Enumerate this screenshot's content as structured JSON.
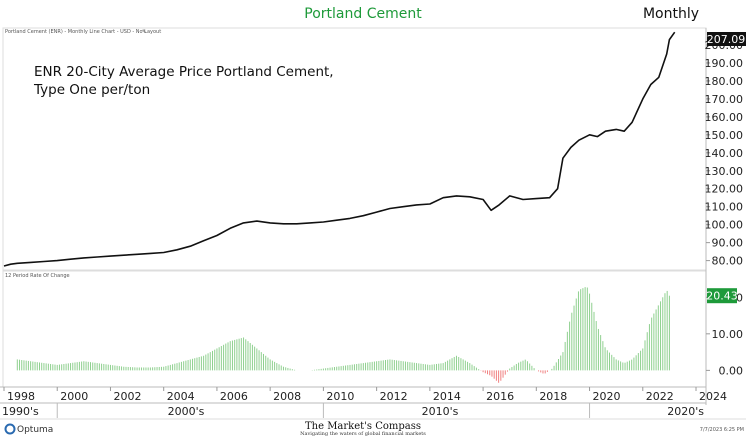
{
  "header": {
    "title": "Portland Cement",
    "frequency": "Monthly",
    "chart_info": "Portland Cement (ENR) - Monthly Line Chart - USD - No Layout"
  },
  "annotation": {
    "line1": "ENR 20-City Average Price Portland Cement,",
    "line2": "Type One per/ton"
  },
  "lower_panel": {
    "label": "12 Period Rate Of Change"
  },
  "footer": {
    "logo": "Optuma",
    "brand": "The Market's Compass",
    "tagline": "Navigating the waters of global financial markets",
    "timestamp": "7/7/2023 6:25 PM"
  },
  "colors": {
    "title": "#1e9a3a",
    "price_line": "#111111",
    "positive_bar": "#8fd08f",
    "negative_bar": "#f08080",
    "last_price_bg": "#111111",
    "last_roc_bg": "#1e9a3a"
  },
  "chart_data": [
    {
      "type": "line",
      "title": "Portland Cement",
      "x_ticks": [
        "1998",
        "2000",
        "2002",
        "2004",
        "2006",
        "2008",
        "2010",
        "2012",
        "2014",
        "2016",
        "2018",
        "2020",
        "2022",
        "2024"
      ],
      "decade_labels": [
        "1990's",
        "2000's",
        "2010's",
        "2020's"
      ],
      "y_ticks": [
        "80.00",
        "90.00",
        "100.00",
        "110.00",
        "120.00",
        "130.00",
        "140.00",
        "150.00",
        "160.00",
        "170.00",
        "180.00",
        "190.00",
        "200.00"
      ],
      "ylim": [
        77,
        205
      ],
      "xlim": [
        1998.0,
        2024.3
      ],
      "last_value": "207.09",
      "series": [
        {
          "x": [
            1998.0,
            1998.25,
            1998.5,
            1999.0,
            1999.5,
            2000.0,
            2000.5,
            2001.0,
            2001.5,
            2002.0,
            2002.5,
            2003.0,
            2003.5,
            2004.0,
            2004.5,
            2005.0,
            2005.5,
            2006.0,
            2006.5,
            2007.0,
            2007.5,
            2008.0,
            2008.5,
            2009.0,
            2009.5,
            2010.0,
            2010.5,
            2011.0,
            2011.5,
            2012.0,
            2012.5,
            2013.0,
            2013.5,
            2014.0,
            2014.5,
            2015.0,
            2015.5,
            2016.0,
            2016.3,
            2016.6,
            2017.0,
            2017.5,
            2018.0,
            2018.5,
            2018.8,
            2019.0,
            2019.3,
            2019.6,
            2020.0,
            2020.3,
            2020.6,
            2021.0,
            2021.3,
            2021.6,
            2022.0,
            2022.3,
            2022.6,
            2022.9,
            2023.0,
            2023.2
          ],
          "values": [
            77,
            78,
            78.5,
            79,
            79.5,
            80,
            80.8,
            81.5,
            82,
            82.5,
            83,
            83.5,
            84,
            84.5,
            86,
            88,
            91,
            94,
            98,
            101,
            102,
            101,
            100.5,
            100.5,
            101,
            101.5,
            102.5,
            103.5,
            105,
            107,
            109,
            110,
            111,
            111.5,
            115,
            116,
            115.5,
            114,
            108,
            111,
            116,
            114,
            114.5,
            115,
            120,
            137,
            143,
            147,
            150,
            149,
            152,
            153,
            152,
            157,
            170,
            178,
            182,
            195,
            203,
            207.09
          ]
        }
      ]
    },
    {
      "type": "bar",
      "title": "12 Period Rate Of Change",
      "y_ticks": [
        "0.00",
        "10.00",
        "20.00"
      ],
      "ylim": [
        -4,
        25
      ],
      "last_value": "20.43",
      "series": [
        {
          "name": "12 Period Rate Of Change",
          "x": [
            1998.0,
            1998.5,
            1999.0,
            1999.5,
            2000.0,
            2000.5,
            2001.0,
            2001.5,
            2002.0,
            2002.5,
            2003.0,
            2003.5,
            2004.0,
            2004.5,
            2005.0,
            2005.5,
            2006.0,
            2006.5,
            2007.0,
            2007.5,
            2008.0,
            2008.5,
            2009.0,
            2009.5,
            2010.0,
            2010.5,
            2011.0,
            2011.5,
            2012.0,
            2012.5,
            2013.0,
            2013.5,
            2014.0,
            2014.5,
            2015.0,
            2015.5,
            2016.0,
            2016.3,
            2016.6,
            2017.0,
            2017.3,
            2017.6,
            2018.0,
            2018.3,
            2018.6,
            2019.0,
            2019.3,
            2019.6,
            2019.9,
            2020.0,
            2020.3,
            2020.6,
            2021.0,
            2021.3,
            2021.6,
            2022.0,
            2022.3,
            2022.6,
            2022.9,
            2023.0
          ],
          "values": [
            2,
            3,
            2.5,
            2,
            1.5,
            2,
            2.5,
            2,
            1.5,
            1,
            0.8,
            0.8,
            1,
            2,
            3,
            4,
            6,
            8,
            9,
            6,
            3,
            1,
            0,
            0,
            0.5,
            1,
            1.5,
            2,
            2.5,
            3,
            2.5,
            2,
            1.5,
            2,
            4,
            2,
            -0.5,
            -1.5,
            -3.5,
            0.5,
            2,
            3,
            0,
            -1,
            0.5,
            5,
            15,
            22,
            23,
            21,
            12,
            6,
            3,
            2,
            3,
            6,
            14,
            18,
            22,
            20.43
          ]
        }
      ]
    }
  ]
}
